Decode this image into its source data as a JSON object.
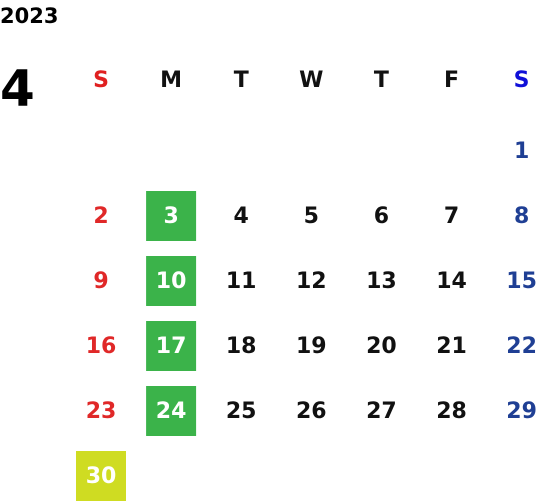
{
  "year": "2023",
  "month": "4",
  "weekdays": [
    {
      "label": "S",
      "color": "#e02020"
    },
    {
      "label": "M",
      "color": "#111111"
    },
    {
      "label": "T",
      "color": "#111111"
    },
    {
      "label": "W",
      "color": "#111111"
    },
    {
      "label": "T",
      "color": "#111111"
    },
    {
      "label": "F",
      "color": "#111111"
    },
    {
      "label": "S",
      "color": "#1010d8"
    }
  ],
  "day_colors": [
    "#e02828",
    "#111111",
    "#111111",
    "#111111",
    "#111111",
    "#111111",
    "#1f3f94"
  ],
  "weeks": [
    [
      null,
      null,
      null,
      null,
      null,
      null,
      {
        "day": 1
      }
    ],
    [
      {
        "day": 2
      },
      {
        "day": 3,
        "background": "#3bb34a"
      },
      {
        "day": 4
      },
      {
        "day": 5
      },
      {
        "day": 6
      },
      {
        "day": 7
      },
      {
        "day": 8
      }
    ],
    [
      {
        "day": 9
      },
      {
        "day": 10,
        "background": "#3bb34a"
      },
      {
        "day": 11
      },
      {
        "day": 12
      },
      {
        "day": 13
      },
      {
        "day": 14
      },
      {
        "day": 15
      }
    ],
    [
      {
        "day": 16
      },
      {
        "day": 17,
        "background": "#3bb34a"
      },
      {
        "day": 18
      },
      {
        "day": 19
      },
      {
        "day": 20
      },
      {
        "day": 21
      },
      {
        "day": 22
      }
    ],
    [
      {
        "day": 23
      },
      {
        "day": 24,
        "background": "#3bb34a"
      },
      {
        "day": 25
      },
      {
        "day": 26
      },
      {
        "day": 27
      },
      {
        "day": 28
      },
      {
        "day": 29
      }
    ],
    [
      {
        "day": 30,
        "background": "#cfdc22"
      },
      null,
      null,
      null,
      null,
      null,
      null
    ]
  ]
}
